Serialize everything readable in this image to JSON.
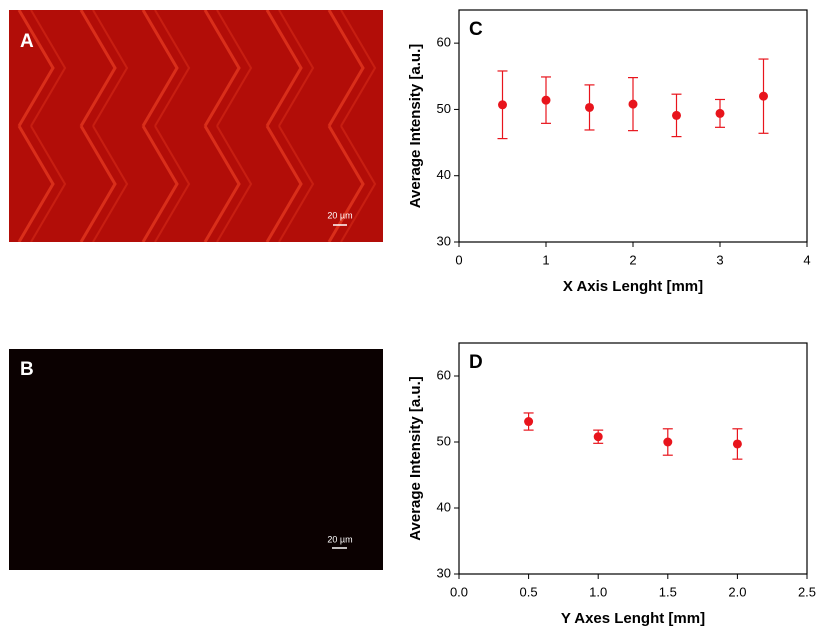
{
  "panels": [
    {
      "label": "A",
      "scale_bar": "20 µm"
    },
    {
      "label": "B",
      "scale_bar": "20 µm"
    }
  ],
  "chart_data": [
    {
      "type": "scatter",
      "panel_label": "C",
      "xlabel": "X Axis Lenght [mm]",
      "ylabel": "Average Intensity [a.u.]",
      "x": [
        0.5,
        1.0,
        1.5,
        2.0,
        2.5,
        3.0,
        3.5
      ],
      "values": [
        50.7,
        51.4,
        50.3,
        50.8,
        49.1,
        49.4,
        52.0
      ],
      "errors": [
        5.1,
        3.5,
        3.4,
        4.0,
        3.2,
        2.1,
        5.6
      ],
      "color": "#e8141c",
      "xlim": [
        0,
        4
      ],
      "xticks": [
        0,
        1,
        2,
        3,
        4
      ],
      "ylim": [
        30,
        65
      ],
      "yticks": [
        30,
        40,
        50,
        60
      ]
    },
    {
      "type": "scatter",
      "panel_label": "D",
      "xlabel": "Y  Axes Lenght [mm]",
      "ylabel": "Average Intensity [a.u.]",
      "x": [
        0.5,
        1.0,
        1.5,
        2.0
      ],
      "values": [
        53.1,
        50.8,
        50.0,
        49.7
      ],
      "errors": [
        1.3,
        1.0,
        2.0,
        2.3
      ],
      "color": "#e8141c",
      "xlim": [
        0,
        2.5
      ],
      "xticks": [
        {
          "value": 0,
          "label": "0.0"
        },
        0.5,
        {
          "value": 1,
          "label": "1.0"
        },
        1.5,
        {
          "value": 2,
          "label": "2.0"
        },
        2.5
      ],
      "ylim": [
        30,
        65
      ],
      "yticks": [
        30,
        40,
        50,
        60
      ]
    }
  ]
}
